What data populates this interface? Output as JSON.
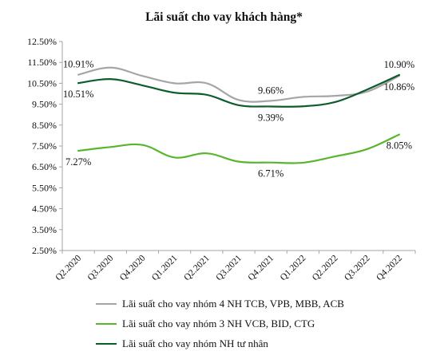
{
  "chart_data": {
    "type": "line",
    "title": "Lãi suất cho vay khách hàng*",
    "xlabel": "",
    "ylabel": "",
    "categories": [
      "Q2.2020",
      "Q3.2020",
      "Q4.2020",
      "Q1.2021",
      "Q2.2021",
      "Q3.2021",
      "Q4.2021",
      "Q1.2022",
      "Q2.2022",
      "Q3.2022",
      "Q4.2022"
    ],
    "ylim": [
      2.5,
      12.5
    ],
    "yticks": [
      2.5,
      3.5,
      4.5,
      5.5,
      6.5,
      7.5,
      8.5,
      9.5,
      10.5,
      11.5,
      12.5
    ],
    "ytick_labels": [
      "2.50%",
      "3.50%",
      "4.50%",
      "5.50%",
      "6.50%",
      "7.50%",
      "8.50%",
      "9.50%",
      "10.50%",
      "11.50%",
      "12.50%"
    ],
    "grid": false,
    "legend_position": "bottom",
    "series": [
      {
        "name": "Lãi suất cho vay nhóm 4 NH TCB, VPB, MBB, ACB",
        "color": "#a6a6a6",
        "values": [
          10.91,
          11.25,
          10.85,
          10.5,
          10.5,
          9.7,
          9.66,
          9.85,
          9.9,
          10.1,
          10.86
        ]
      },
      {
        "name": "Lãi suất cho vay nhóm 3 NH VCB, BID, CTG",
        "color": "#59b62c",
        "values": [
          7.27,
          7.45,
          7.55,
          6.95,
          7.15,
          6.75,
          6.71,
          6.7,
          7.0,
          7.35,
          8.05
        ]
      },
      {
        "name": "Lãi suất cho vay nhóm NH tư nhân",
        "color": "#0d5d2c",
        "values": [
          10.51,
          10.7,
          10.4,
          10.05,
          9.95,
          9.45,
          9.39,
          9.4,
          9.6,
          10.2,
          10.9
        ]
      }
    ],
    "annotations": [
      {
        "text": "10.91%",
        "series": 0,
        "index": 0,
        "pos": "above"
      },
      {
        "text": "10.51%",
        "series": 2,
        "index": 0,
        "pos": "below"
      },
      {
        "text": "9.66%",
        "series": 0,
        "index": 6,
        "pos": "above"
      },
      {
        "text": "9.39%",
        "series": 2,
        "index": 6,
        "pos": "below"
      },
      {
        "text": "7.27%",
        "series": 1,
        "index": 0,
        "pos": "below"
      },
      {
        "text": "6.71%",
        "series": 1,
        "index": 6,
        "pos": "below"
      },
      {
        "text": "10.90%",
        "series": 2,
        "index": 10,
        "pos": "above"
      },
      {
        "text": "10.86%",
        "series": 0,
        "index": 10,
        "pos": "below"
      },
      {
        "text": "8.05%",
        "series": 1,
        "index": 10,
        "pos": "below"
      }
    ]
  }
}
